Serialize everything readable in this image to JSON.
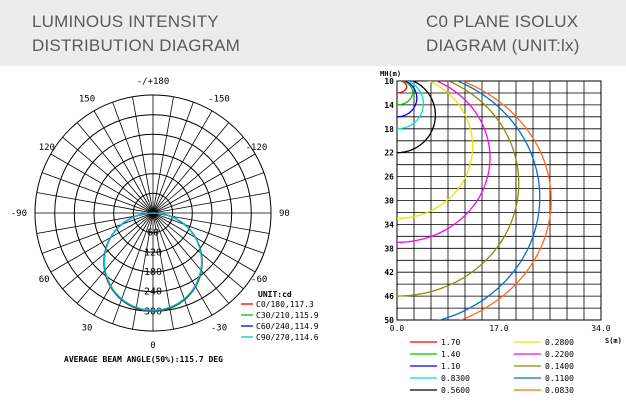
{
  "header": {
    "left_title_line1": "LUMINOUS INTENSITY",
    "left_title_line2": "DISTRIBUTION DIAGRAM",
    "right_title_line1": "C0 PLANE ISOLUX",
    "right_title_line2": "DIAGRAM (UNIT:lx)"
  },
  "chart_data": [
    {
      "type": "polar",
      "angle_labels": [
        "-/+180",
        "150",
        "120",
        "90",
        "60",
        "30",
        "0",
        "-30",
        "-60",
        "-90",
        "-120",
        "-150"
      ],
      "angle_values": [
        180,
        150,
        120,
        90,
        60,
        30,
        0,
        -30,
        -60,
        -90,
        -120,
        -150
      ],
      "radial_ticks": [
        60,
        120,
        180,
        240,
        300
      ],
      "radial_labels": [
        "60",
        "120",
        "180",
        "240",
        "300"
      ],
      "unit_label": "UNIT:cd",
      "series": [
        {
          "name": "C0/180,117.3",
          "color": "#ff0000",
          "max_cd": 300
        },
        {
          "name": "C30/210,115.9",
          "color": "#00c800",
          "max_cd": 300
        },
        {
          "name": "C60/240,114.9",
          "color": "#0000ff",
          "max_cd": 300
        },
        {
          "name": "C90/270,114.6",
          "color": "#00c8c8",
          "max_cd": 300
        }
      ],
      "footer": "AVERAGE BEAM ANGLE(50%):115.7 DEG"
    },
    {
      "type": "isolux",
      "ylabel": "MH(m)",
      "xlabel": "S(m)",
      "y_ticks": [
        "10",
        "14",
        "18",
        "22",
        "26",
        "30",
        "34",
        "38",
        "42",
        "46",
        "50"
      ],
      "x_ticks": [
        "0.0",
        "17.0",
        "34.0"
      ],
      "x_range": [
        0,
        34
      ],
      "y_range": [
        10,
        50
      ],
      "series": [
        {
          "name": "1.70",
          "color": "#ff0000",
          "reach_s": 1.6,
          "y_bottom": 12
        },
        {
          "name": "1.40",
          "color": "#00c800",
          "reach_s": 2.6,
          "y_bottom": 14
        },
        {
          "name": "1.10",
          "color": "#0000ff",
          "reach_s": 3.3,
          "y_bottom": 16
        },
        {
          "name": "0.8300",
          "color": "#00e0e0",
          "reach_s": 4.4,
          "y_bottom": 18
        },
        {
          "name": "0.5600",
          "color": "#000000",
          "reach_s": 6.4,
          "y_bottom": 22
        },
        {
          "name": "0.2800",
          "color": "#e6e600",
          "reach_s": 12.6,
          "y_bottom": 33
        },
        {
          "name": "0.2200",
          "color": "#ff00ff",
          "reach_s": 15.5,
          "y_bottom": 37
        },
        {
          "name": "0.1400",
          "color": "#8c8c00",
          "reach_s": 20.3,
          "y_bottom": 46
        },
        {
          "name": "0.1100",
          "color": "#0070d0",
          "reach_s": 23.8,
          "y_bottom": 51
        },
        {
          "name": "0.0830",
          "color": "#ff6a1a",
          "reach_s": 25.7,
          "y_bottom": 52
        }
      ]
    }
  ]
}
